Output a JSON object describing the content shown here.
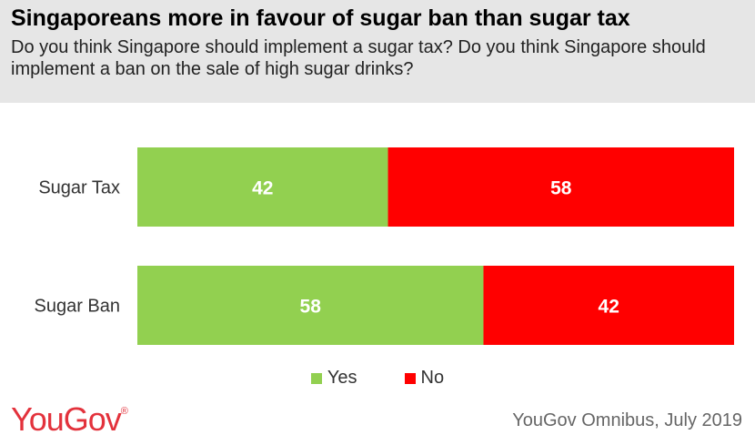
{
  "header": {
    "title": "Singaporeans more in favour of sugar ban than sugar tax",
    "subtitle": "Do you think Singapore should implement a sugar tax? Do you think Singapore should implement a ban on the sale of high sugar drinks?"
  },
  "chart_data": {
    "type": "bar",
    "orientation": "horizontal",
    "stacked": true,
    "percent_stacked": true,
    "categories": [
      "Sugar Tax",
      "Sugar Ban"
    ],
    "series": [
      {
        "name": "Yes",
        "values": [
          42,
          58
        ],
        "color": "#92d050"
      },
      {
        "name": "No",
        "values": [
          58,
          42
        ],
        "color": "#ff0000"
      }
    ],
    "data_labels": true,
    "legend_position": "bottom",
    "grid": false
  },
  "legend": [
    {
      "label": "Yes",
      "color": "#92d050"
    },
    {
      "label": "No",
      "color": "#ff0000"
    }
  ],
  "footer": {
    "logo_text": "YouGov",
    "logo_mark": "®",
    "source": "YouGov Omnibus, July 2019"
  }
}
